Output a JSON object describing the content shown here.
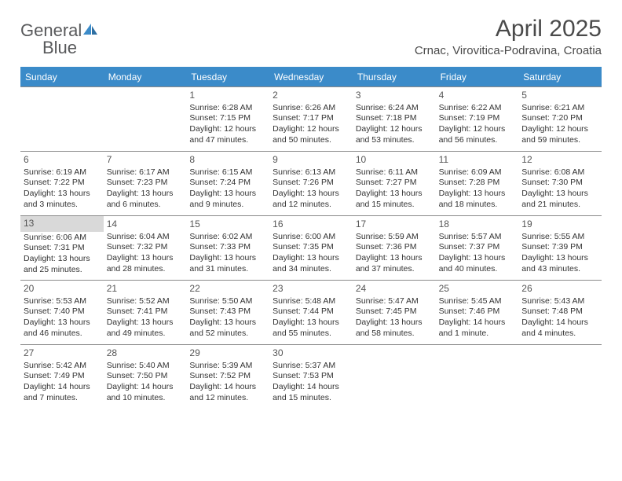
{
  "brand": {
    "word1": "General",
    "word2": "Blue"
  },
  "title": "April 2025",
  "location": "Crnac, Virovitica-Podravina, Croatia",
  "colors": {
    "header_bg": "#3b8bc9",
    "header_text": "#ffffff",
    "border": "#8a8a8a",
    "text": "#333333",
    "title_text": "#4a4a4a",
    "shade": "#d9d9d9"
  },
  "fonts": {
    "title_size": 30,
    "subtitle_size": 15,
    "header_size": 12,
    "cell_size": 10.5
  },
  "day_headers": [
    "Sunday",
    "Monday",
    "Tuesday",
    "Wednesday",
    "Thursday",
    "Friday",
    "Saturday"
  ],
  "leading_blanks": 2,
  "days": [
    {
      "n": 1,
      "sunrise": "6:28 AM",
      "sunset": "7:15 PM",
      "daylight": "12 hours and 47 minutes."
    },
    {
      "n": 2,
      "sunrise": "6:26 AM",
      "sunset": "7:17 PM",
      "daylight": "12 hours and 50 minutes."
    },
    {
      "n": 3,
      "sunrise": "6:24 AM",
      "sunset": "7:18 PM",
      "daylight": "12 hours and 53 minutes."
    },
    {
      "n": 4,
      "sunrise": "6:22 AM",
      "sunset": "7:19 PM",
      "daylight": "12 hours and 56 minutes."
    },
    {
      "n": 5,
      "sunrise": "6:21 AM",
      "sunset": "7:20 PM",
      "daylight": "12 hours and 59 minutes."
    },
    {
      "n": 6,
      "sunrise": "6:19 AM",
      "sunset": "7:22 PM",
      "daylight": "13 hours and 3 minutes."
    },
    {
      "n": 7,
      "sunrise": "6:17 AM",
      "sunset": "7:23 PM",
      "daylight": "13 hours and 6 minutes."
    },
    {
      "n": 8,
      "sunrise": "6:15 AM",
      "sunset": "7:24 PM",
      "daylight": "13 hours and 9 minutes."
    },
    {
      "n": 9,
      "sunrise": "6:13 AM",
      "sunset": "7:26 PM",
      "daylight": "13 hours and 12 minutes."
    },
    {
      "n": 10,
      "sunrise": "6:11 AM",
      "sunset": "7:27 PM",
      "daylight": "13 hours and 15 minutes."
    },
    {
      "n": 11,
      "sunrise": "6:09 AM",
      "sunset": "7:28 PM",
      "daylight": "13 hours and 18 minutes."
    },
    {
      "n": 12,
      "sunrise": "6:08 AM",
      "sunset": "7:30 PM",
      "daylight": "13 hours and 21 minutes."
    },
    {
      "n": 13,
      "sunrise": "6:06 AM",
      "sunset": "7:31 PM",
      "daylight": "13 hours and 25 minutes.",
      "today": true
    },
    {
      "n": 14,
      "sunrise": "6:04 AM",
      "sunset": "7:32 PM",
      "daylight": "13 hours and 28 minutes."
    },
    {
      "n": 15,
      "sunrise": "6:02 AM",
      "sunset": "7:33 PM",
      "daylight": "13 hours and 31 minutes."
    },
    {
      "n": 16,
      "sunrise": "6:00 AM",
      "sunset": "7:35 PM",
      "daylight": "13 hours and 34 minutes."
    },
    {
      "n": 17,
      "sunrise": "5:59 AM",
      "sunset": "7:36 PM",
      "daylight": "13 hours and 37 minutes."
    },
    {
      "n": 18,
      "sunrise": "5:57 AM",
      "sunset": "7:37 PM",
      "daylight": "13 hours and 40 minutes."
    },
    {
      "n": 19,
      "sunrise": "5:55 AM",
      "sunset": "7:39 PM",
      "daylight": "13 hours and 43 minutes."
    },
    {
      "n": 20,
      "sunrise": "5:53 AM",
      "sunset": "7:40 PM",
      "daylight": "13 hours and 46 minutes."
    },
    {
      "n": 21,
      "sunrise": "5:52 AM",
      "sunset": "7:41 PM",
      "daylight": "13 hours and 49 minutes."
    },
    {
      "n": 22,
      "sunrise": "5:50 AM",
      "sunset": "7:43 PM",
      "daylight": "13 hours and 52 minutes."
    },
    {
      "n": 23,
      "sunrise": "5:48 AM",
      "sunset": "7:44 PM",
      "daylight": "13 hours and 55 minutes."
    },
    {
      "n": 24,
      "sunrise": "5:47 AM",
      "sunset": "7:45 PM",
      "daylight": "13 hours and 58 minutes."
    },
    {
      "n": 25,
      "sunrise": "5:45 AM",
      "sunset": "7:46 PM",
      "daylight": "14 hours and 1 minute."
    },
    {
      "n": 26,
      "sunrise": "5:43 AM",
      "sunset": "7:48 PM",
      "daylight": "14 hours and 4 minutes."
    },
    {
      "n": 27,
      "sunrise": "5:42 AM",
      "sunset": "7:49 PM",
      "daylight": "14 hours and 7 minutes."
    },
    {
      "n": 28,
      "sunrise": "5:40 AM",
      "sunset": "7:50 PM",
      "daylight": "14 hours and 10 minutes."
    },
    {
      "n": 29,
      "sunrise": "5:39 AM",
      "sunset": "7:52 PM",
      "daylight": "14 hours and 12 minutes."
    },
    {
      "n": 30,
      "sunrise": "5:37 AM",
      "sunset": "7:53 PM",
      "daylight": "14 hours and 15 minutes."
    }
  ],
  "labels": {
    "sunrise": "Sunrise:",
    "sunset": "Sunset:",
    "daylight": "Daylight:"
  }
}
